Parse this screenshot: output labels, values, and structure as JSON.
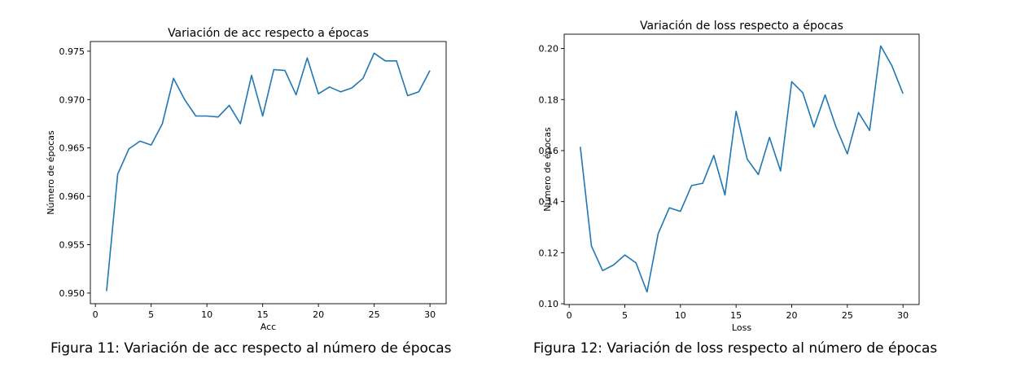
{
  "chart_data": [
    {
      "type": "line",
      "title": "Variación de acc respecto a épocas",
      "xlabel": "Acc",
      "ylabel": "Número de épocas",
      "xlim": [
        -0.45,
        31.45
      ],
      "ylim": [
        0.9489,
        0.976
      ],
      "xticks": [
        0,
        5,
        10,
        15,
        20,
        25,
        30
      ],
      "yticks": [
        0.95,
        0.955,
        0.96,
        0.965,
        0.97,
        0.975
      ],
      "ytick_labels": [
        "0.950",
        "0.955",
        "0.960",
        "0.965",
        "0.970",
        "0.975"
      ],
      "grid": false,
      "color": "#1f77b4",
      "x": [
        1,
        2,
        3,
        4,
        5,
        6,
        7,
        8,
        9,
        10,
        11,
        12,
        13,
        14,
        15,
        16,
        17,
        18,
        19,
        20,
        21,
        22,
        23,
        24,
        25,
        26,
        27,
        28,
        29,
        30
      ],
      "y": [
        0.9502,
        0.9623,
        0.9649,
        0.9657,
        0.9653,
        0.9675,
        0.9722,
        0.97,
        0.9683,
        0.9683,
        0.9682,
        0.9694,
        0.9675,
        0.9725,
        0.9683,
        0.9731,
        0.973,
        0.9705,
        0.9743,
        0.9706,
        0.9713,
        0.9708,
        0.9712,
        0.9722,
        0.9748,
        0.974,
        0.974,
        0.9704,
        0.9708,
        0.973
      ]
    },
    {
      "type": "line",
      "title": "Variación de loss respecto a épocas",
      "xlabel": "Loss",
      "ylabel": "Número de épocas",
      "xlim": [
        -0.45,
        31.45
      ],
      "ylim": [
        0.0997,
        0.2056
      ],
      "xticks": [
        0,
        5,
        10,
        15,
        20,
        25,
        30
      ],
      "yticks": [
        0.1,
        0.12,
        0.14,
        0.16,
        0.18,
        0.2
      ],
      "ytick_labels": [
        "0.10",
        "0.12",
        "0.14",
        "0.16",
        "0.18",
        "0.20"
      ],
      "grid": false,
      "color": "#1f77b4",
      "x": [
        1,
        2,
        3,
        4,
        5,
        6,
        7,
        8,
        9,
        10,
        11,
        12,
        13,
        14,
        15,
        16,
        17,
        18,
        19,
        20,
        21,
        22,
        23,
        24,
        25,
        26,
        27,
        28,
        29,
        30
      ],
      "y": [
        0.1615,
        0.1226,
        0.113,
        0.1152,
        0.1191,
        0.116,
        0.1046,
        0.1275,
        0.1376,
        0.1362,
        0.1463,
        0.1472,
        0.1581,
        0.1426,
        0.1754,
        0.1567,
        0.1506,
        0.1652,
        0.152,
        0.187,
        0.1826,
        0.1692,
        0.1818,
        0.169,
        0.1587,
        0.1749,
        0.1679,
        0.201,
        0.1933,
        0.1823
      ]
    }
  ],
  "captions": {
    "left": "Figura 11: Variación de acc respecto al número de épocas",
    "right": "Figura 12: Variación de loss respecto al número de épocas"
  }
}
